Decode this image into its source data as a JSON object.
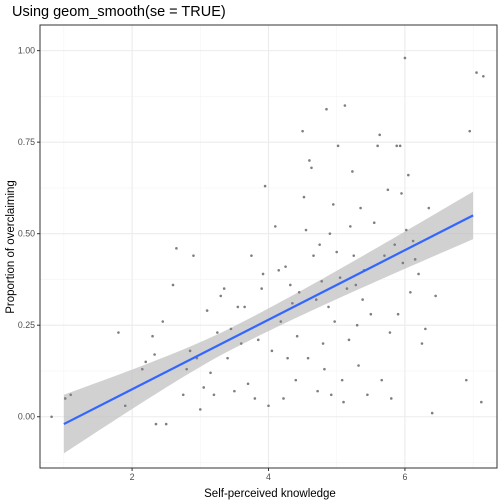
{
  "chart_data": {
    "type": "scatter",
    "title": "Using geom_smooth(se = TRUE)",
    "xlabel": "Self-perceived knowledge",
    "ylabel": "Proportion of overclaiming",
    "xlim": [
      0.65,
      7.35
    ],
    "ylim": [
      -0.14,
      1.07
    ],
    "x_ticks": [
      2,
      4,
      6
    ],
    "x_tick_labels": [
      "2",
      "4",
      "6"
    ],
    "y_ticks": [
      0,
      0.25,
      0.5,
      0.75,
      1
    ],
    "y_tick_labels": [
      "0.00",
      "0.25",
      "0.50",
      "0.75",
      "1.00"
    ],
    "grid": true,
    "colors": {
      "points": "#7f7f7f",
      "fit_line": "#3366ff",
      "confidence_band": "#bfbfbf",
      "panel_border": "#333333",
      "grid_major": "#ebebeb",
      "grid_minor": "#f5f5f5"
    },
    "smooth": {
      "method": "linear",
      "se": true,
      "x_range": [
        1.0,
        7.0
      ],
      "fit": [
        -0.02,
        0.55
      ],
      "lower": [
        -0.1,
        0.49
      ],
      "upper": [
        0.06,
        0.62
      ]
    },
    "points": [
      [
        0.82,
        0.0
      ],
      [
        1.02,
        0.05
      ],
      [
        1.1,
        0.06
      ],
      [
        1.8,
        0.23
      ],
      [
        1.9,
        0.03
      ],
      [
        2.15,
        0.13
      ],
      [
        2.2,
        0.15
      ],
      [
        2.3,
        0.22
      ],
      [
        2.33,
        0.17
      ],
      [
        2.35,
        -0.02
      ],
      [
        2.45,
        0.26
      ],
      [
        2.5,
        -0.02
      ],
      [
        2.6,
        0.36
      ],
      [
        2.65,
        0.46
      ],
      [
        2.75,
        0.06
      ],
      [
        2.8,
        0.13
      ],
      [
        2.85,
        0.18
      ],
      [
        2.9,
        0.44
      ],
      [
        2.95,
        0.16
      ],
      [
        3.0,
        0.02
      ],
      [
        3.05,
        0.08
      ],
      [
        3.1,
        0.29
      ],
      [
        3.15,
        0.12
      ],
      [
        3.2,
        0.06
      ],
      [
        3.25,
        0.23
      ],
      [
        3.3,
        0.33
      ],
      [
        3.35,
        0.35
      ],
      [
        3.4,
        0.16
      ],
      [
        3.45,
        0.24
      ],
      [
        3.5,
        0.07
      ],
      [
        3.55,
        0.3
      ],
      [
        3.6,
        0.2
      ],
      [
        3.65,
        0.3
      ],
      [
        3.7,
        0.09
      ],
      [
        3.75,
        0.44
      ],
      [
        3.8,
        0.05
      ],
      [
        3.85,
        0.21
      ],
      [
        3.9,
        0.35
      ],
      [
        3.92,
        0.39
      ],
      [
        3.95,
        0.63
      ],
      [
        4.0,
        0.03
      ],
      [
        4.05,
        0.18
      ],
      [
        4.1,
        0.52
      ],
      [
        4.15,
        0.4
      ],
      [
        4.18,
        0.26
      ],
      [
        4.22,
        0.05
      ],
      [
        4.25,
        0.41
      ],
      [
        4.28,
        0.16
      ],
      [
        4.32,
        0.36
      ],
      [
        4.35,
        0.31
      ],
      [
        4.4,
        0.1
      ],
      [
        4.42,
        0.22
      ],
      [
        4.45,
        0.34
      ],
      [
        4.5,
        0.78
      ],
      [
        4.52,
        0.6
      ],
      [
        4.55,
        0.51
      ],
      [
        4.58,
        0.16
      ],
      [
        4.6,
        0.7
      ],
      [
        4.63,
        0.68
      ],
      [
        4.66,
        0.44
      ],
      [
        4.7,
        0.32
      ],
      [
        4.72,
        0.07
      ],
      [
        4.75,
        0.47
      ],
      [
        4.78,
        0.37
      ],
      [
        4.8,
        0.2
      ],
      [
        4.82,
        0.13
      ],
      [
        4.85,
        0.84
      ],
      [
        4.88,
        0.3
      ],
      [
        4.9,
        0.5
      ],
      [
        4.92,
        0.06
      ],
      [
        4.95,
        0.58
      ],
      [
        4.97,
        0.26
      ],
      [
        5.0,
        0.45
      ],
      [
        5.02,
        0.74
      ],
      [
        5.05,
        0.38
      ],
      [
        5.08,
        0.1
      ],
      [
        5.1,
        0.04
      ],
      [
        5.12,
        0.85
      ],
      [
        5.15,
        0.35
      ],
      [
        5.18,
        0.21
      ],
      [
        5.2,
        0.52
      ],
      [
        5.23,
        0.67
      ],
      [
        5.25,
        0.44
      ],
      [
        5.28,
        0.36
      ],
      [
        5.3,
        0.25
      ],
      [
        5.32,
        0.14
      ],
      [
        5.35,
        0.57
      ],
      [
        5.38,
        0.32
      ],
      [
        5.4,
        0.4
      ],
      [
        5.45,
        0.06
      ],
      [
        5.5,
        0.28
      ],
      [
        5.55,
        0.53
      ],
      [
        5.6,
        0.74
      ],
      [
        5.63,
        0.77
      ],
      [
        5.66,
        0.1
      ],
      [
        5.7,
        0.44
      ],
      [
        5.75,
        0.62
      ],
      [
        5.78,
        0.23
      ],
      [
        5.8,
        0.05
      ],
      [
        5.85,
        0.47
      ],
      [
        5.88,
        0.74
      ],
      [
        5.9,
        0.28
      ],
      [
        5.93,
        0.74
      ],
      [
        5.95,
        0.61
      ],
      [
        5.97,
        0.42
      ],
      [
        6.0,
        0.98
      ],
      [
        6.02,
        0.51
      ],
      [
        6.05,
        0.66
      ],
      [
        6.08,
        0.34
      ],
      [
        6.12,
        0.48
      ],
      [
        6.15,
        0.43
      ],
      [
        6.2,
        0.39
      ],
      [
        6.25,
        0.2
      ],
      [
        6.3,
        0.24
      ],
      [
        6.35,
        0.57
      ],
      [
        6.4,
        0.01
      ],
      [
        6.45,
        0.33
      ],
      [
        6.9,
        0.1
      ],
      [
        6.95,
        0.78
      ],
      [
        7.05,
        0.94
      ],
      [
        7.12,
        0.04
      ],
      [
        7.15,
        0.93
      ]
    ]
  }
}
